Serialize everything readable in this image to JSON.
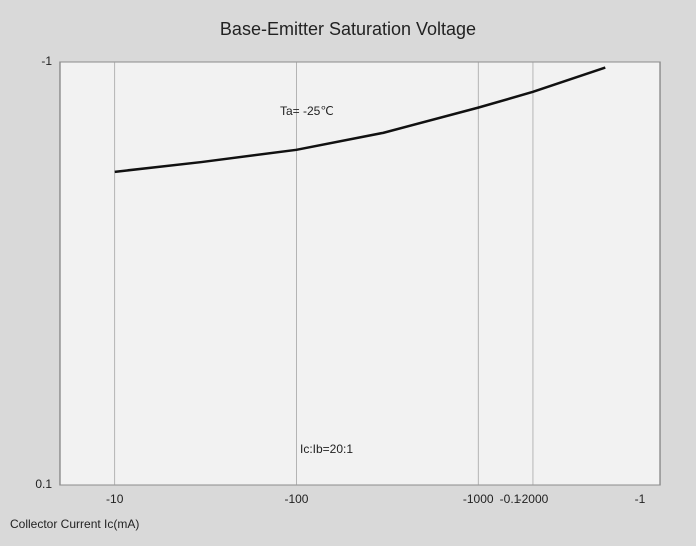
{
  "chart_data": {
    "type": "line",
    "title": "Base-Emitter Saturation Voltage",
    "x_label": "Collector Current   Ic(mA)",
    "log_x": true,
    "log_y": true,
    "grid": true,
    "xlim": [
      -5,
      -10000
    ],
    "xticks": [
      -10,
      -100,
      -1000,
      -2000
    ],
    "ylim": [
      -0.1,
      -1
    ],
    "yticks": [
      {
        "value": -0.1,
        "label": "0.1"
      },
      -1
    ],
    "x": [
      -10,
      -30,
      -100,
      -300,
      -1000,
      -2000,
      -5000
    ],
    "series": [
      {
        "color": "#111111",
        "values": [
          -0.55,
          -0.58,
          -0.62,
          -0.68,
          -0.78,
          -0.85,
          -0.97
        ]
      }
    ],
    "annotations": [
      "Ta= -25℃",
      "Ic:Ib=20:1",
      "-0.1",
      "-1"
    ]
  }
}
